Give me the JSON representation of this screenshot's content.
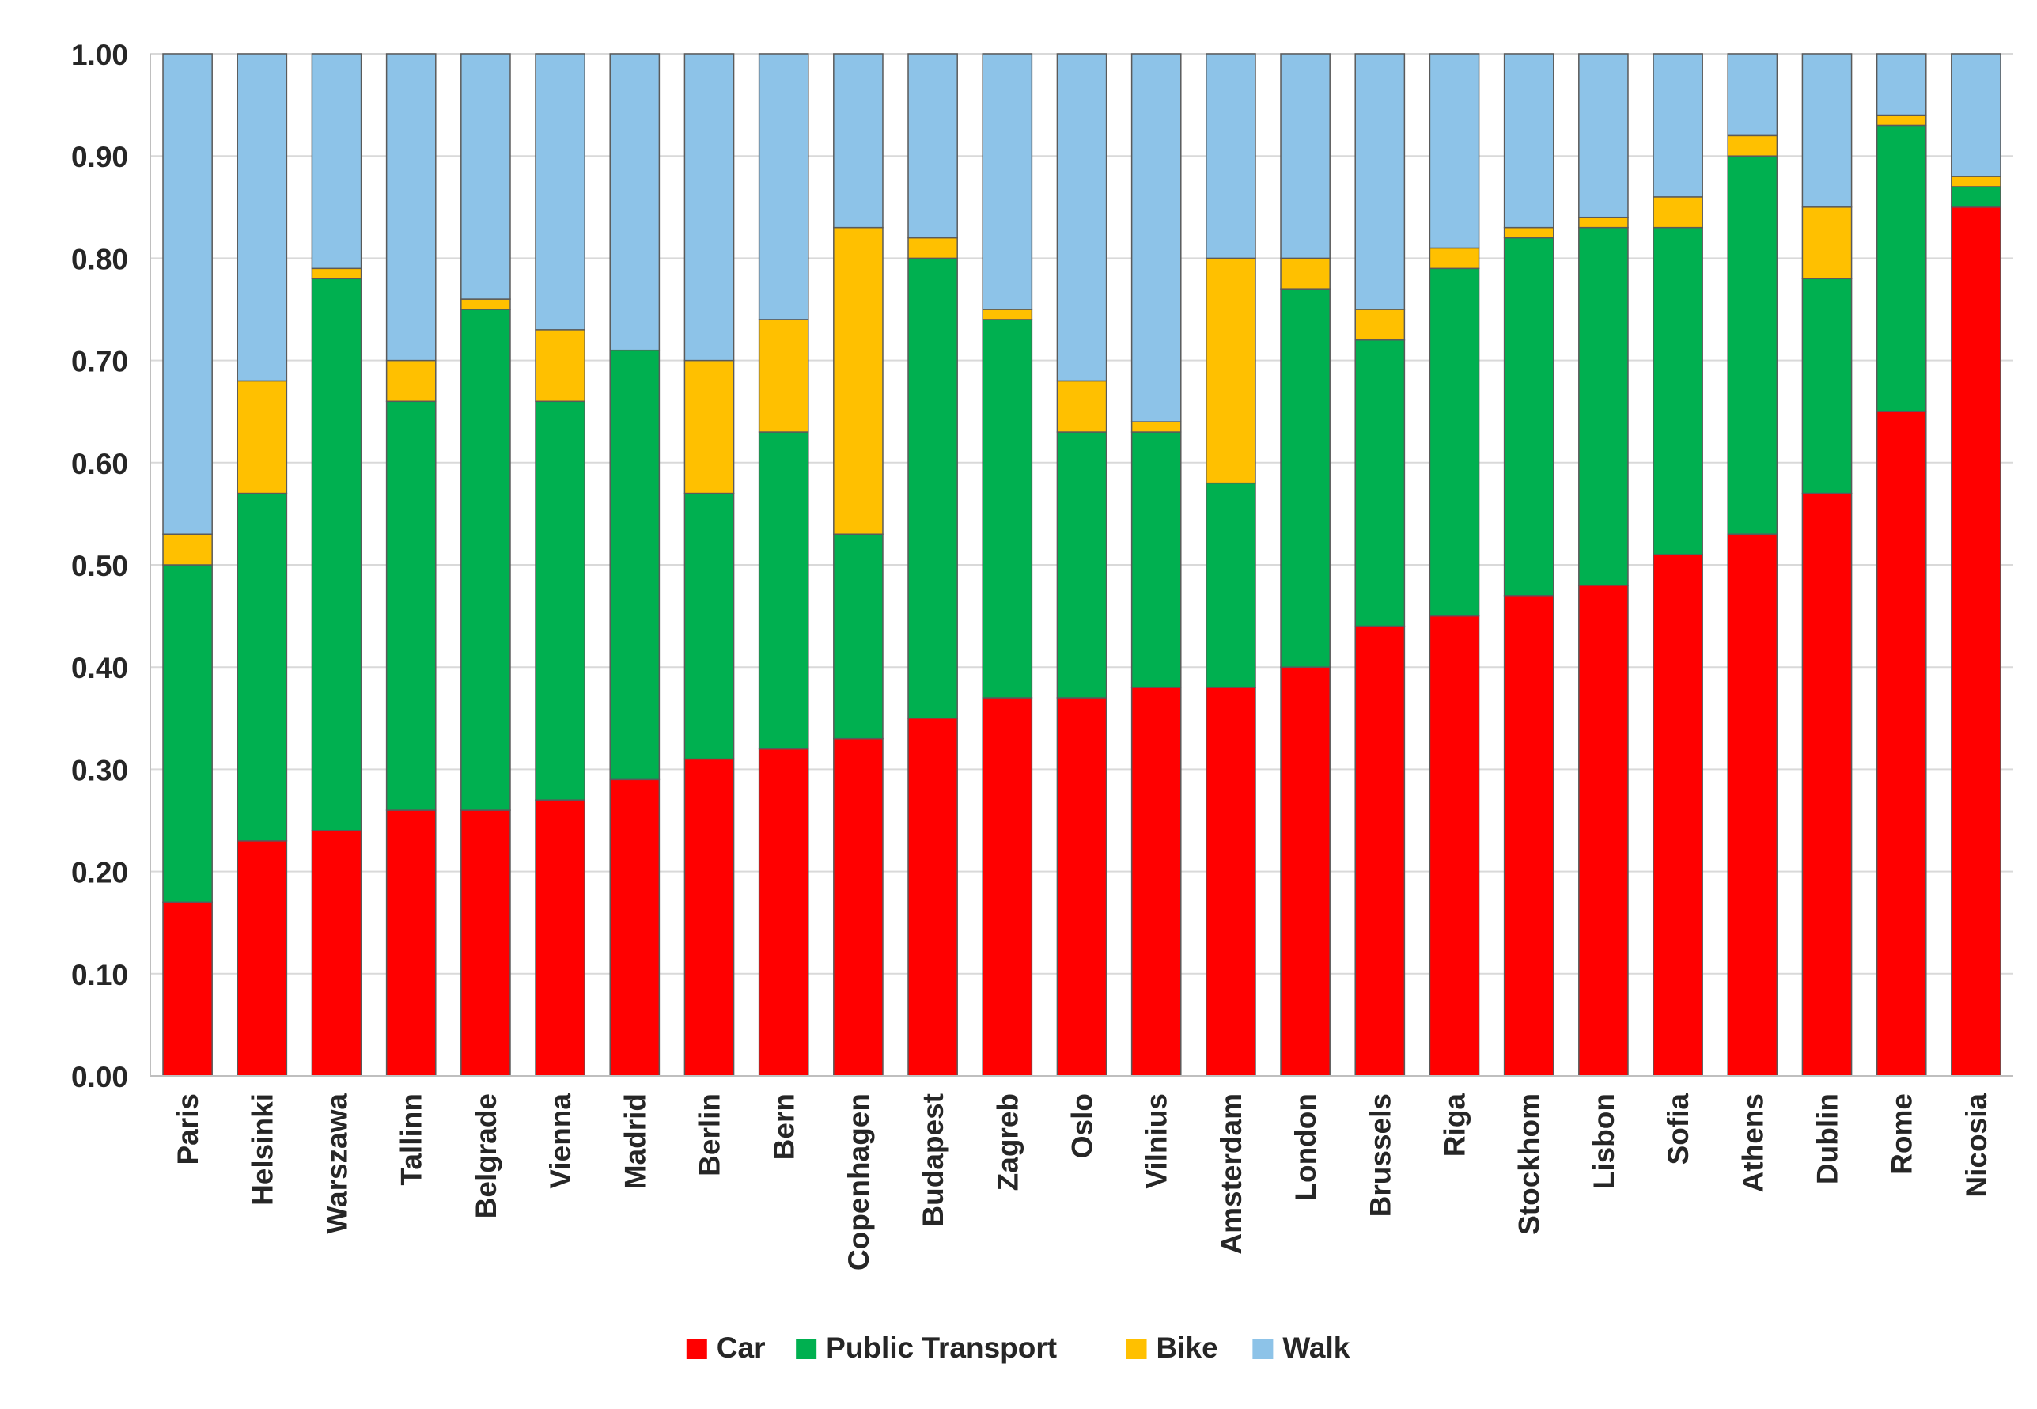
{
  "chart_data": {
    "type": "bar",
    "stacked": true,
    "title": "",
    "xlabel": "",
    "ylabel": "",
    "ylim": [
      0,
      1
    ],
    "y_ticks": [
      "0.00",
      "0.10",
      "0.20",
      "0.30",
      "0.40",
      "0.50",
      "0.60",
      "0.70",
      "0.80",
      "0.90",
      "1.00"
    ],
    "grid": true,
    "legend_position": "bottom",
    "categories": [
      "Paris",
      "Helsinki",
      "Warszawa",
      "Tallinn",
      "Belgrade",
      "Vienna",
      "Madrid",
      "Berlin",
      "Bern",
      "Copenhagen",
      "Budapest",
      "Zagreb",
      "Oslo",
      "Vilnius",
      "Amsterdam",
      "London",
      "Brussels",
      "Riga",
      "Stockhom",
      "Lisbon",
      "Sofia",
      "Athens",
      "Dublin",
      "Rome",
      "Nicosia"
    ],
    "series": [
      {
        "name": "Car",
        "color": "#ff0000",
        "values": [
          0.17,
          0.23,
          0.24,
          0.26,
          0.26,
          0.27,
          0.29,
          0.31,
          0.32,
          0.33,
          0.35,
          0.37,
          0.37,
          0.38,
          0.38,
          0.4,
          0.44,
          0.45,
          0.47,
          0.48,
          0.51,
          0.53,
          0.57,
          0.65,
          0.85
        ]
      },
      {
        "name": "Public Transport",
        "color": "#00b050",
        "values": [
          0.33,
          0.34,
          0.54,
          0.4,
          0.49,
          0.39,
          0.42,
          0.26,
          0.31,
          0.2,
          0.45,
          0.37,
          0.26,
          0.25,
          0.2,
          0.37,
          0.28,
          0.34,
          0.35,
          0.35,
          0.32,
          0.37,
          0.21,
          0.28,
          0.02
        ]
      },
      {
        "name": "Bike",
        "color": "#ffc000",
        "values": [
          0.03,
          0.11,
          0.01,
          0.04,
          0.01,
          0.07,
          0.0,
          0.13,
          0.11,
          0.3,
          0.02,
          0.01,
          0.05,
          0.01,
          0.22,
          0.03,
          0.03,
          0.02,
          0.01,
          0.01,
          0.03,
          0.02,
          0.07,
          0.01,
          0.01
        ]
      },
      {
        "name": "Walk",
        "color": "#8dc3e8",
        "values": [
          0.47,
          0.32,
          0.21,
          0.3,
          0.24,
          0.27,
          0.29,
          0.3,
          0.26,
          0.17,
          0.18,
          0.25,
          0.32,
          0.36,
          0.2,
          0.2,
          0.25,
          0.19,
          0.17,
          0.16,
          0.14,
          0.08,
          0.15,
          0.06,
          0.12
        ]
      }
    ]
  }
}
